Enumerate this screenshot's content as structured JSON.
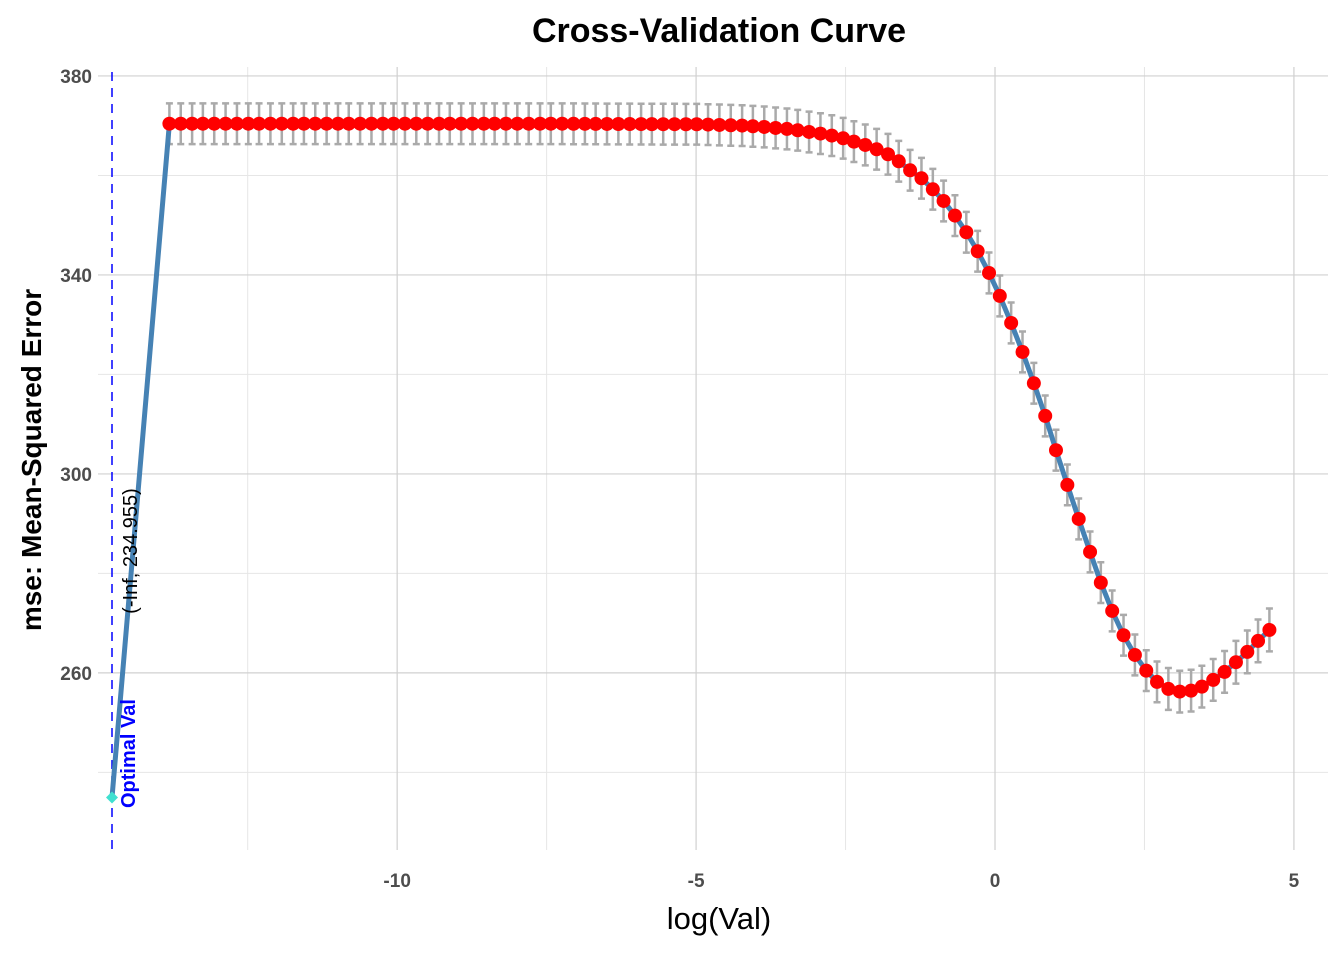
{
  "chart_data": {
    "type": "line",
    "title": "Cross-Validation Curve",
    "xlabel": "log(Val)",
    "ylabel": "mse: Mean-Squared Error",
    "xlim": [
      -14.77,
      5.57
    ],
    "ylim": [
      224.4,
      381.8
    ],
    "x_ticks": [
      -10,
      -5,
      0,
      5
    ],
    "x_minor_grid": [
      -12.5,
      -7.5,
      -2.5,
      2.5
    ],
    "y_ticks": [
      260,
      300,
      340,
      380
    ],
    "y_minor_grid": [
      240,
      280,
      320,
      360
    ],
    "grid": true,
    "colors": {
      "line": "#4682b4",
      "points": "#ff0000",
      "error_bars": "#aaaaaa",
      "optimal_line": "#0000ff",
      "optimal_point": "#40e0d0",
      "grid": "#d0d0d0"
    },
    "x": [
      -13.81,
      -13.62,
      -13.43,
      -13.25,
      -13.06,
      -12.87,
      -12.68,
      -12.49,
      -12.31,
      -12.12,
      -11.93,
      -11.74,
      -11.56,
      -11.37,
      -11.18,
      -10.99,
      -10.81,
      -10.62,
      -10.43,
      -10.24,
      -10.06,
      -9.87,
      -9.68,
      -9.49,
      -9.3,
      -9.12,
      -8.93,
      -8.74,
      -8.55,
      -8.37,
      -8.18,
      -7.99,
      -7.8,
      -7.61,
      -7.43,
      -7.24,
      -7.05,
      -6.86,
      -6.68,
      -6.49,
      -6.3,
      -6.11,
      -5.92,
      -5.74,
      -5.55,
      -5.36,
      -5.17,
      -4.99,
      -4.8,
      -4.61,
      -4.42,
      -4.23,
      -4.05,
      -3.86,
      -3.67,
      -3.48,
      -3.3,
      -3.11,
      -2.92,
      -2.73,
      -2.54,
      -2.36,
      -2.17,
      -1.98,
      -1.79,
      -1.61,
      -1.42,
      -1.23,
      -1.04,
      -0.86,
      -0.67,
      -0.48,
      -0.29,
      -0.1,
      0.08,
      0.27,
      0.46,
      0.65,
      0.84,
      1.02,
      1.21,
      1.4,
      1.59,
      1.77,
      1.96,
      2.15,
      2.34,
      2.53,
      2.71,
      2.9,
      3.09,
      3.28,
      3.46,
      3.65,
      3.84,
      4.03,
      4.22,
      4.4,
      4.59
    ],
    "y": [
      370.4,
      370.4,
      370.4,
      370.4,
      370.4,
      370.4,
      370.4,
      370.4,
      370.4,
      370.4,
      370.4,
      370.4,
      370.4,
      370.4,
      370.4,
      370.4,
      370.4,
      370.4,
      370.4,
      370.4,
      370.4,
      370.4,
      370.4,
      370.4,
      370.4,
      370.4,
      370.4,
      370.4,
      370.4,
      370.4,
      370.4,
      370.4,
      370.4,
      370.4,
      370.4,
      370.4,
      370.38,
      370.37,
      370.36,
      370.35,
      370.34,
      370.33,
      370.32,
      370.31,
      370.3,
      370.3,
      370.29,
      370.29,
      370.22,
      370.15,
      370.08,
      370.02,
      369.88,
      369.75,
      369.55,
      369.35,
      369.08,
      368.74,
      368.41,
      368.01,
      367.47,
      366.8,
      366.13,
      365.26,
      364.26,
      362.85,
      361.04,
      359.43,
      357.22,
      354.87,
      351.93,
      348.58,
      344.76,
      340.4,
      335.78,
      330.35,
      324.52,
      318.23,
      311.66,
      304.77,
      297.79,
      290.95,
      284.32,
      278.15,
      272.46,
      267.57,
      263.61,
      260.46,
      258.19,
      256.78,
      256.24,
      256.44,
      257.24,
      258.59,
      260.2,
      262.15,
      264.22,
      266.43,
      268.64
    ],
    "se": [
      4.1,
      4.1,
      4.1,
      4.1,
      4.1,
      4.1,
      4.1,
      4.1,
      4.1,
      4.1,
      4.1,
      4.1,
      4.1,
      4.1,
      4.1,
      4.1,
      4.1,
      4.1,
      4.1,
      4.1,
      4.1,
      4.1,
      4.1,
      4.1,
      4.1,
      4.1,
      4.1,
      4.1,
      4.1,
      4.1,
      4.1,
      4.1,
      4.1,
      4.1,
      4.1,
      4.1,
      4.1,
      4.1,
      4.1,
      4.1,
      4.1,
      4.1,
      4.1,
      4.1,
      4.1,
      4.1,
      4.1,
      4.1,
      4.1,
      4.1,
      4.1,
      4.1,
      4.1,
      4.1,
      4.1,
      4.1,
      4.1,
      4.1,
      4.1,
      4.1,
      4.1,
      4.1,
      4.1,
      4.1,
      4.1,
      4.1,
      4.1,
      4.1,
      4.1,
      4.1,
      4.1,
      4.1,
      4.1,
      4.1,
      4.1,
      4.1,
      4.1,
      4.1,
      4.1,
      4.1,
      4.1,
      4.1,
      4.1,
      4.1,
      4.1,
      4.1,
      4.1,
      4.1,
      4.1,
      4.2,
      4.2,
      4.2,
      4.2,
      4.2,
      4.2,
      4.3,
      4.3,
      4.3,
      4.3
    ],
    "optimal": {
      "x": "-Inf",
      "y": 234.955,
      "label": "(-Inf, 234.955)",
      "line_label": "Optimal Val"
    }
  }
}
